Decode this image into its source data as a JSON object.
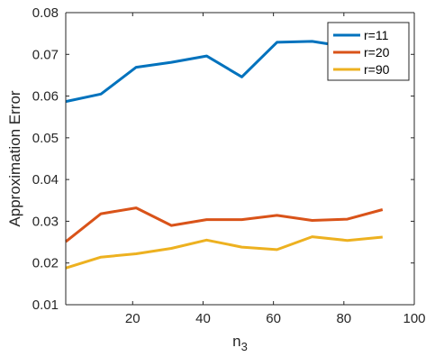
{
  "chart_data": {
    "type": "line",
    "title": "",
    "xlabel": "n",
    "xlabel_subscript": "3",
    "ylabel": "Approximation Error",
    "xlim": [
      1,
      100
    ],
    "ylim": [
      0.01,
      0.08
    ],
    "xticks": [
      20,
      40,
      60,
      80,
      100
    ],
    "xtick_labels": [
      "20",
      "40",
      "60",
      "80",
      "100"
    ],
    "yticks": [
      0.01,
      0.02,
      0.03,
      0.04,
      0.05,
      0.06,
      0.07,
      0.08
    ],
    "ytick_labels": [
      "0.01",
      "0.02",
      "0.03",
      "0.04",
      "0.05",
      "0.06",
      "0.07",
      "0.08"
    ],
    "grid": false,
    "legend_position": "top-right",
    "x": [
      1,
      11,
      21,
      31,
      41,
      51,
      61,
      71,
      81,
      91
    ],
    "series": [
      {
        "name": "r=11",
        "color": "#0072BD",
        "values": [
          0.0587,
          0.0605,
          0.0669,
          0.0681,
          0.0696,
          0.0646,
          0.0729,
          0.0731,
          0.0718,
          0.071
        ]
      },
      {
        "name": "r=20",
        "color": "#D95319",
        "values": [
          0.0251,
          0.0318,
          0.0332,
          0.029,
          0.0304,
          0.0304,
          0.0314,
          0.0302,
          0.0305,
          0.0328
        ]
      },
      {
        "name": "r=90",
        "color": "#EDB120",
        "values": [
          0.0188,
          0.0214,
          0.0222,
          0.0235,
          0.0255,
          0.0238,
          0.0232,
          0.0263,
          0.0254,
          0.0262
        ]
      }
    ]
  }
}
